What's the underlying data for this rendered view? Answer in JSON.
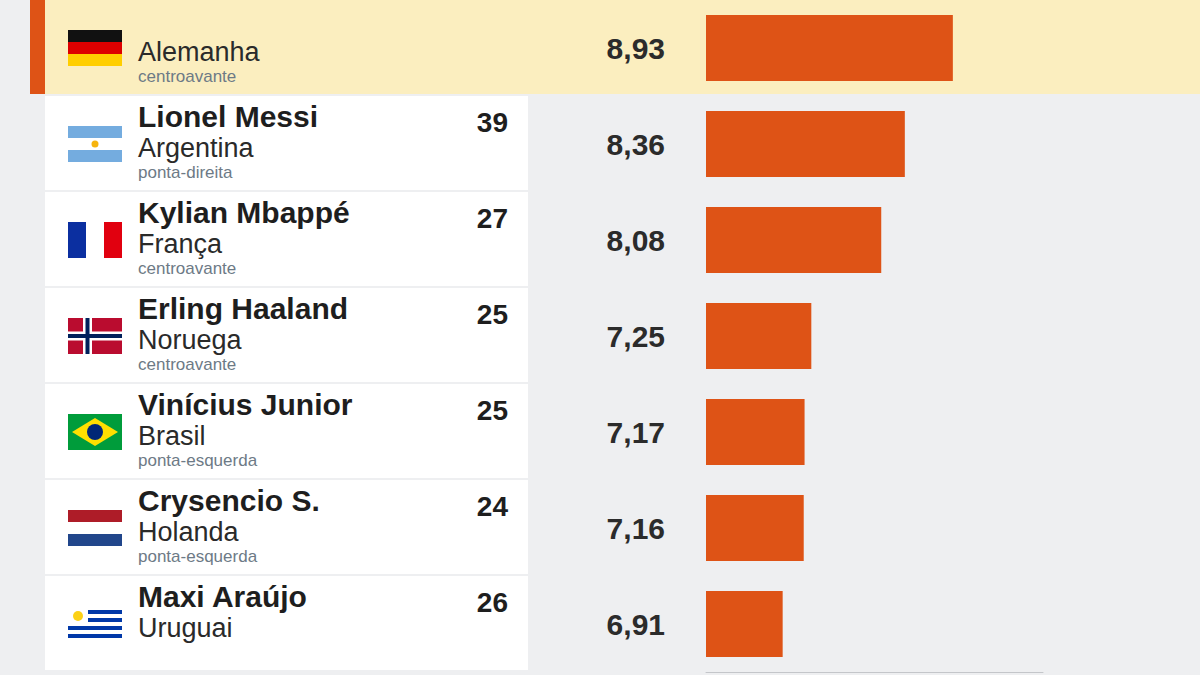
{
  "chart_data": {
    "type": "bar",
    "orientation": "horizontal",
    "categories": [
      null,
      "Lionel Messi",
      "Kylian Mbappé",
      "Erling Haaland",
      "Vinícius Junior",
      "Crysencio S.",
      "Maxi Araújo"
    ],
    "countries": [
      "Alemanha",
      "Argentina",
      "França",
      "Noruega",
      "Brasil",
      "Holanda",
      "Uruguai"
    ],
    "positions": [
      "centroavante",
      "ponta-direita",
      "centroavante",
      "centroavante",
      "ponta-esquerda",
      "ponta-esquerda",
      null
    ],
    "ages": [
      null,
      39,
      27,
      25,
      25,
      24,
      26
    ],
    "values": [
      8.93,
      8.36,
      8.08,
      7.25,
      7.17,
      7.16,
      6.91
    ],
    "value_labels": [
      "8,93",
      "8,36",
      "8,08",
      "7,25",
      "7,17",
      "7,16",
      "6,91"
    ],
    "color": "#de5316",
    "xlim": [
      6,
      10
    ],
    "data_labels": true,
    "tick_labels": false,
    "grid": false
  }
}
